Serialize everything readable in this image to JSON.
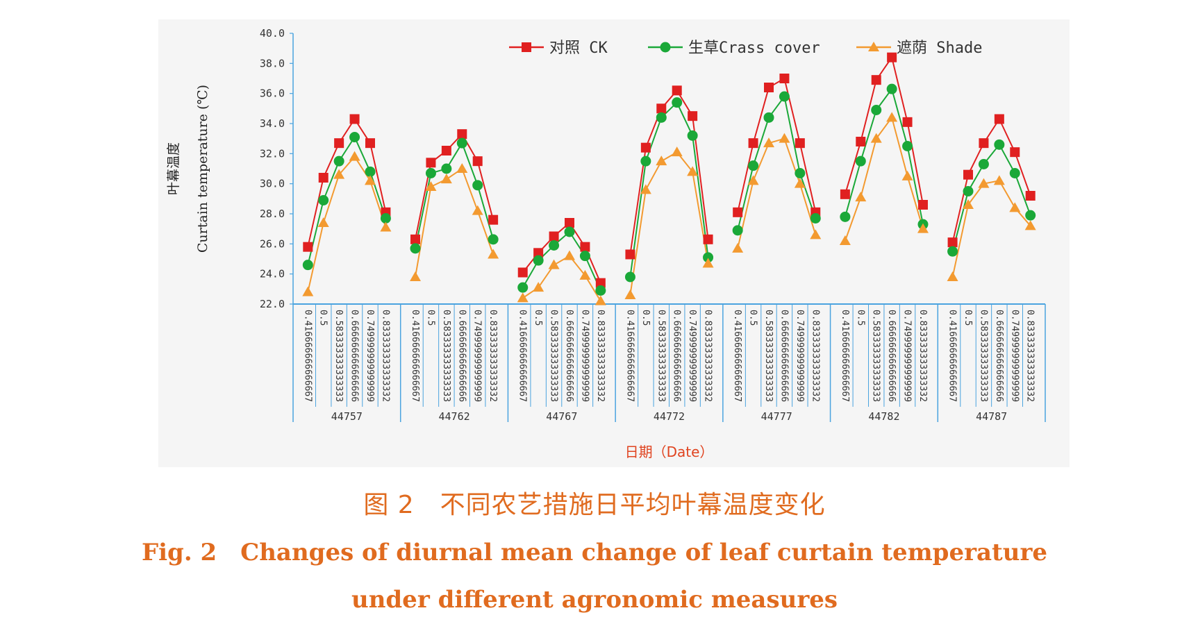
{
  "chart_data": {
    "type": "line",
    "ylabel_cn": "叶幕温度",
    "ylabel_en": "Curtain temperature (℃)",
    "xlabel": "日期（Date）",
    "ylim": [
      22.0,
      40.0
    ],
    "ytick_step": 2.0,
    "yticks": [
      "22.0",
      "24.0",
      "26.0",
      "28.0",
      "30.0",
      "32.0",
      "34.0",
      "36.0",
      "38.0",
      "40.0"
    ],
    "groups": [
      "44757",
      "44762",
      "44767",
      "44772",
      "44777",
      "44782",
      "44787"
    ],
    "sub_categories": [
      "0.416666666666667",
      "0.5",
      "0.583333333333333",
      "0.666666666666666",
      "0.749999999999999",
      "0.833333333333332"
    ],
    "legend_position": "top-right",
    "series": [
      {
        "name": "对照 CK",
        "color": "#e02020",
        "marker": "square",
        "values": [
          [
            25.8,
            30.4,
            32.7,
            34.3,
            32.7,
            28.1
          ],
          [
            26.3,
            31.4,
            32.2,
            33.3,
            31.5,
            27.6
          ],
          [
            24.1,
            25.4,
            26.5,
            27.4,
            25.8,
            23.4
          ],
          [
            25.3,
            32.4,
            35.0,
            36.2,
            34.5,
            26.3
          ],
          [
            28.1,
            32.7,
            36.4,
            37.0,
            32.7,
            28.1
          ],
          [
            29.3,
            32.8,
            36.9,
            38.4,
            34.1,
            28.6
          ],
          [
            26.1,
            30.6,
            32.7,
            34.3,
            32.1,
            29.2
          ]
        ]
      },
      {
        "name": "生草Crass cover",
        "color": "#1aa838",
        "marker": "circle",
        "values": [
          [
            24.6,
            28.9,
            31.5,
            33.1,
            30.8,
            27.7
          ],
          [
            25.7,
            30.7,
            31.0,
            32.7,
            29.9,
            26.3
          ],
          [
            23.1,
            24.9,
            25.9,
            26.8,
            25.2,
            22.9
          ],
          [
            23.8,
            31.5,
            34.4,
            35.4,
            33.2,
            25.1
          ],
          [
            26.9,
            31.2,
            34.4,
            35.8,
            30.7,
            27.7
          ],
          [
            27.8,
            31.5,
            34.9,
            36.3,
            32.5,
            27.3
          ],
          [
            25.5,
            29.5,
            31.3,
            32.6,
            30.7,
            27.9
          ]
        ]
      },
      {
        "name": "遮荫 Shade",
        "color": "#f39a30",
        "marker": "triangle",
        "values": [
          [
            22.8,
            27.4,
            30.6,
            31.8,
            30.2,
            27.1
          ],
          [
            23.8,
            29.8,
            30.3,
            31.0,
            28.2,
            25.3
          ],
          [
            22.4,
            23.1,
            24.6,
            25.2,
            23.9,
            22.2
          ],
          [
            22.6,
            29.6,
            31.5,
            32.1,
            30.8,
            24.7
          ],
          [
            25.7,
            30.2,
            32.7,
            33.0,
            30.0,
            26.6
          ],
          [
            26.2,
            29.1,
            33.0,
            34.4,
            30.5,
            27.0
          ],
          [
            23.8,
            28.6,
            30.0,
            30.2,
            28.4,
            27.2
          ]
        ]
      }
    ]
  },
  "caption": {
    "cn": "图 2　不同农艺措施日平均叶幕温度变化",
    "en": "Fig. 2　Changes of diurnal mean change of leaf curtain temperature under different agronomic measures"
  }
}
